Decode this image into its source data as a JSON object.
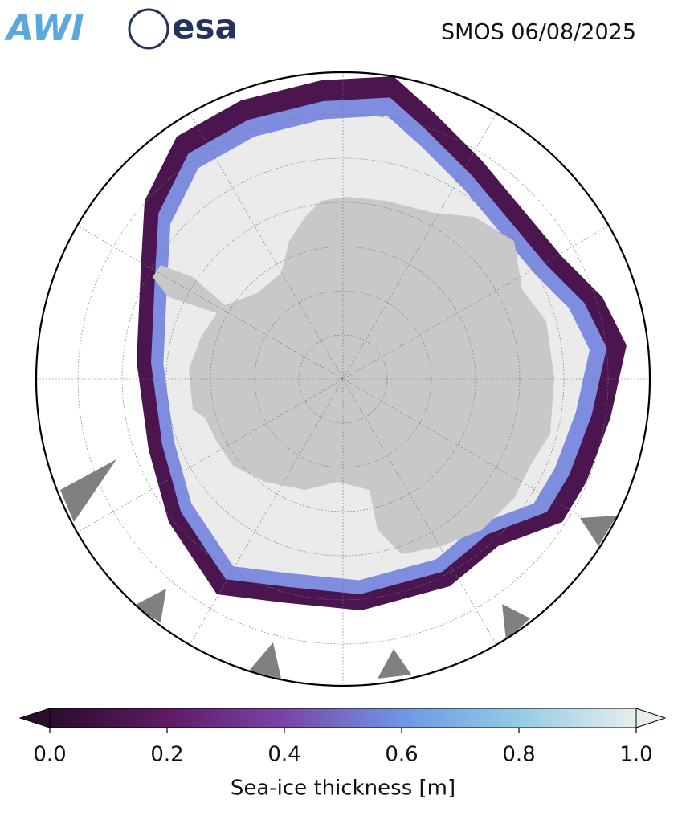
{
  "header": {
    "logos": [
      "AWI",
      "esa"
    ],
    "title": "SMOS 06/08/2025"
  },
  "colorbar": {
    "label": "Sea-ice thickness [m]",
    "lim": [
      0,
      1
    ],
    "ticks": [
      {
        "value": 0,
        "label": "0.0"
      },
      0.2,
      0.4,
      0.6,
      0.8,
      {
        "value": 1,
        "label": "1.0"
      }
    ]
  }
}
